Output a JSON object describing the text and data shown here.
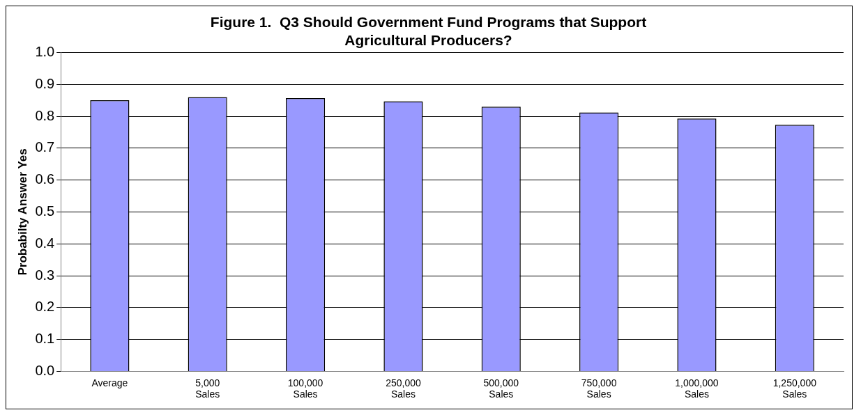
{
  "chart_data": {
    "type": "bar",
    "title": [
      "Figure 1.  Q3 Should Government Fund Programs that Support",
      "Agricultural Producers?"
    ],
    "ylabel": "Probabilty Answer Yes",
    "categories": [
      "Average",
      "5,000 Sales",
      "100,000 Sales",
      "250,000 Sales",
      "500,000 Sales",
      "750,000 Sales",
      "1,000,000 Sales",
      "1,250,000 Sales"
    ],
    "values": [
      0.85,
      0.86,
      0.857,
      0.847,
      0.83,
      0.812,
      0.793,
      0.773
    ],
    "color": "#9999ff",
    "ylim": [
      0,
      1
    ],
    "yticks": [
      {
        "value": 0,
        "label": "0.0"
      },
      {
        "value": 0.1,
        "label": "0.1"
      },
      {
        "value": 0.2,
        "label": "0.2"
      },
      {
        "value": 0.3,
        "label": "0.3"
      },
      {
        "value": 0.4,
        "label": "0.4"
      },
      {
        "value": 0.5,
        "label": "0.5"
      },
      {
        "value": 0.6,
        "label": "0.6"
      },
      {
        "value": 0.7,
        "label": "0.7"
      },
      {
        "value": 0.8,
        "label": "0.8"
      },
      {
        "value": 0.9,
        "label": "0.9"
      },
      {
        "value": 1,
        "label": "1.0"
      }
    ],
    "grid": "y"
  }
}
